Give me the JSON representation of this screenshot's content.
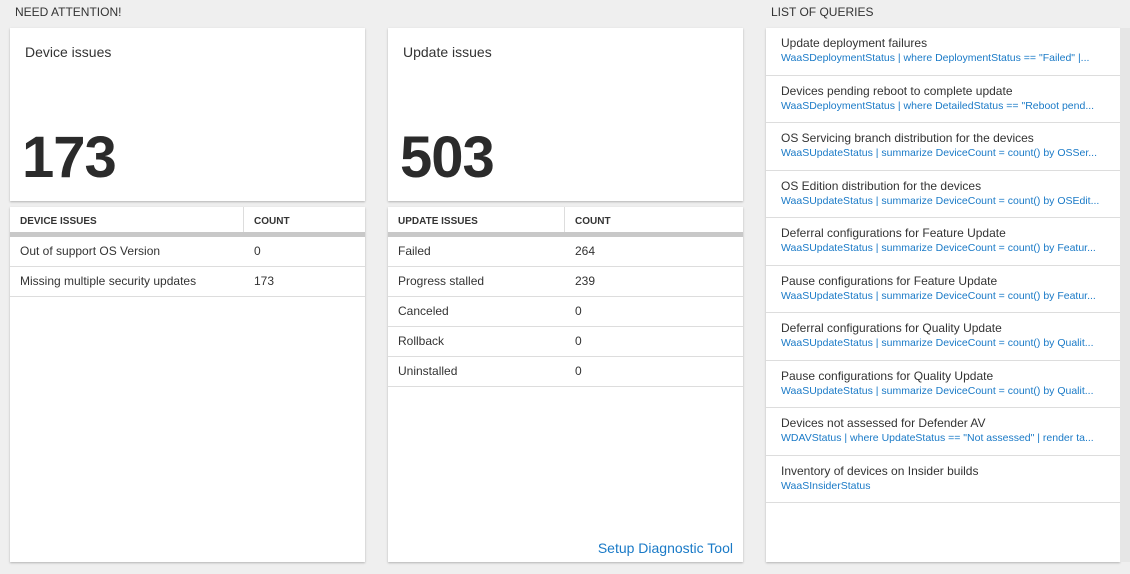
{
  "need_attention": {
    "title": "NEED ATTENTION!"
  },
  "device_tile": {
    "title": "Device issues",
    "value": "173",
    "table": {
      "headers": [
        "DEVICE ISSUES",
        "COUNT"
      ],
      "rows": [
        [
          "Out of support OS Version",
          "0"
        ],
        [
          "Missing multiple security updates",
          "173"
        ]
      ]
    }
  },
  "update_tile": {
    "title": "Update issues",
    "value": "503",
    "table": {
      "headers": [
        "UPDATE ISSUES",
        "COUNT"
      ],
      "rows": [
        [
          "Failed",
          "264"
        ],
        [
          "Progress stalled",
          "239"
        ],
        [
          "Canceled",
          "0"
        ],
        [
          "Rollback",
          "0"
        ],
        [
          "Uninstalled",
          "0"
        ]
      ]
    },
    "link": "Setup Diagnostic Tool"
  },
  "queries": {
    "title": "LIST OF QUERIES",
    "items": [
      {
        "title": "Update deployment failures",
        "query": "WaaSDeploymentStatus | where DeploymentStatus == \"Failed\" |..."
      },
      {
        "title": "Devices pending reboot to complete update",
        "query": "WaaSDeploymentStatus | where DetailedStatus == \"Reboot pend..."
      },
      {
        "title": "OS Servicing branch distribution for the devices",
        "query": "WaaSUpdateStatus | summarize DeviceCount = count() by OSSer..."
      },
      {
        "title": "OS Edition distribution for the devices",
        "query": "WaaSUpdateStatus | summarize DeviceCount = count() by OSEdit..."
      },
      {
        "title": "Deferral configurations for Feature Update",
        "query": "WaaSUpdateStatus | summarize DeviceCount = count() by Featur..."
      },
      {
        "title": "Pause configurations for Feature Update",
        "query": "WaaSUpdateStatus | summarize DeviceCount = count() by Featur..."
      },
      {
        "title": "Deferral configurations for Quality Update",
        "query": "WaaSUpdateStatus | summarize DeviceCount = count() by Qualit..."
      },
      {
        "title": "Pause configurations for Quality Update",
        "query": "WaaSUpdateStatus | summarize DeviceCount = count() by Qualit..."
      },
      {
        "title": "Devices not assessed for Defender AV",
        "query": "WDAVStatus | where UpdateStatus == \"Not assessed\" | render ta..."
      },
      {
        "title": "Inventory of devices on Insider builds",
        "query": "WaaSInsiderStatus"
      }
    ]
  }
}
